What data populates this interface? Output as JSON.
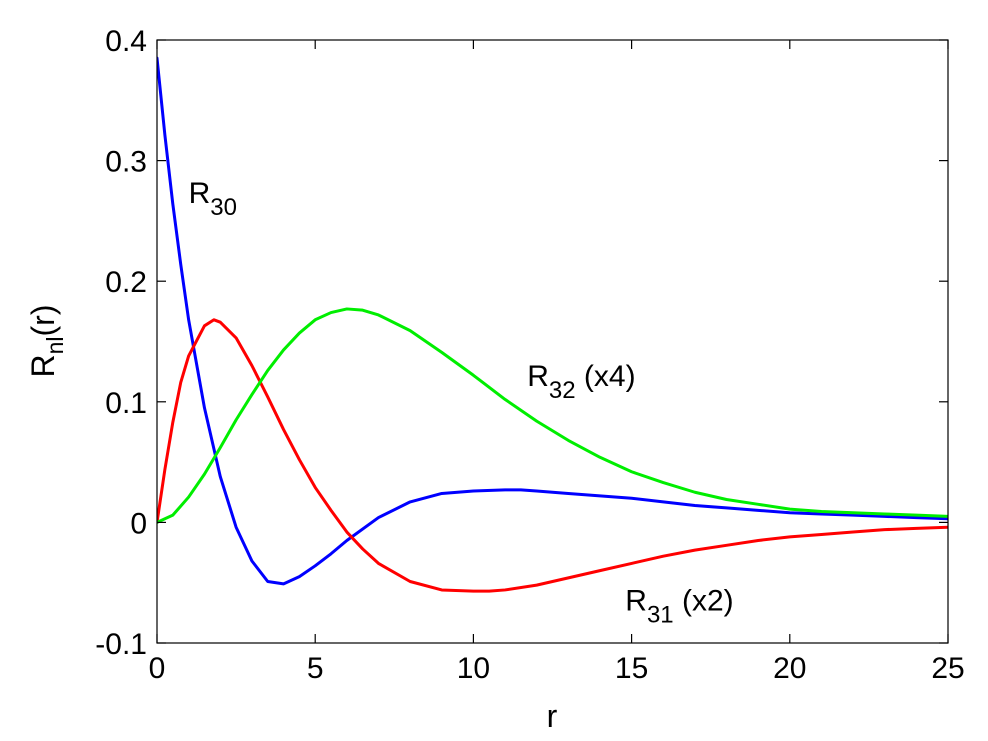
{
  "chart_data": {
    "type": "line",
    "xlabel": "r",
    "ylabel": {
      "main": "R",
      "sub": "nl",
      "suffix": "(r)"
    },
    "xlim": [
      0,
      25
    ],
    "ylim": [
      -0.1,
      0.4
    ],
    "xticks": [
      0,
      5,
      10,
      15,
      20,
      25
    ],
    "yticks": [
      -0.1,
      0,
      0.1,
      0.2,
      0.3,
      0.4
    ],
    "xtick_labels": [
      "0",
      "5",
      "10",
      "15",
      "20",
      "25"
    ],
    "ytick_labels": [
      "-0.1",
      "0",
      "0.1",
      "0.2",
      "0.3",
      "0.4"
    ],
    "grid": false,
    "legend": "none",
    "series": [
      {
        "color": "#0000ff",
        "x": [
          0,
          0.25,
          0.5,
          0.75,
          1,
          1.5,
          2,
          2.5,
          3,
          3.5,
          4,
          4.5,
          5,
          5.5,
          6,
          7,
          8,
          9,
          10,
          11,
          11.5,
          12,
          13,
          14,
          15,
          16,
          17,
          18,
          19,
          20,
          21,
          22,
          23,
          24,
          25
        ],
        "y": [
          0.385,
          0.321,
          0.264,
          0.214,
          0.168,
          0.095,
          0.038,
          -0.004,
          -0.032,
          -0.049,
          -0.051,
          -0.045,
          -0.036,
          -0.026,
          -0.015,
          0.004,
          0.017,
          0.024,
          0.026,
          0.027,
          0.027,
          0.026,
          0.024,
          0.022,
          0.02,
          0.017,
          0.014,
          0.012,
          0.01,
          0.008,
          0.007,
          0.006,
          0.005,
          0.004,
          0.003
        ]
      },
      {
        "color": "#ff0000",
        "x": [
          0,
          0.25,
          0.5,
          0.75,
          1,
          1.5,
          1.8,
          2,
          2.5,
          3,
          3.5,
          4,
          4.5,
          5,
          5.5,
          6,
          6.5,
          7,
          8,
          9,
          10,
          10.5,
          11,
          12,
          13,
          14,
          15,
          16,
          17,
          18,
          19,
          20,
          21,
          22,
          23,
          24,
          25
        ],
        "y": [
          0,
          0.044,
          0.083,
          0.116,
          0.138,
          0.163,
          0.168,
          0.166,
          0.153,
          0.13,
          0.104,
          0.077,
          0.052,
          0.029,
          0.01,
          -0.008,
          -0.022,
          -0.034,
          -0.049,
          -0.056,
          -0.057,
          -0.057,
          -0.056,
          -0.052,
          -0.046,
          -0.04,
          -0.034,
          -0.028,
          -0.023,
          -0.019,
          -0.015,
          -0.012,
          -0.01,
          -0.008,
          -0.006,
          -0.005,
          -0.004
        ]
      },
      {
        "color": "#00ee00",
        "x": [
          0,
          0.5,
          1,
          1.5,
          2,
          2.5,
          3,
          3.5,
          4,
          4.5,
          5,
          5.5,
          6,
          6.5,
          7,
          8,
          9,
          10,
          11,
          12,
          13,
          14,
          15,
          16,
          17,
          18,
          19,
          20,
          21,
          22,
          23,
          24,
          25
        ],
        "y": [
          0,
          0.006,
          0.021,
          0.04,
          0.062,
          0.085,
          0.106,
          0.126,
          0.143,
          0.157,
          0.168,
          0.174,
          0.177,
          0.176,
          0.172,
          0.159,
          0.141,
          0.122,
          0.102,
          0.084,
          0.068,
          0.054,
          0.042,
          0.033,
          0.025,
          0.019,
          0.015,
          0.011,
          0.009,
          0.008,
          0.007,
          0.006,
          0.005
        ]
      }
    ],
    "annotations": [
      {
        "main": "R",
        "sub": "30",
        "suffix": "",
        "x": 1.0,
        "y": 0.265
      },
      {
        "main": "R",
        "sub": "32",
        "suffix": " (x4)",
        "x": 11.7,
        "y": 0.113
      },
      {
        "main": "R",
        "sub": "31",
        "suffix": " (x2)",
        "x": 14.8,
        "y": -0.073
      }
    ]
  }
}
